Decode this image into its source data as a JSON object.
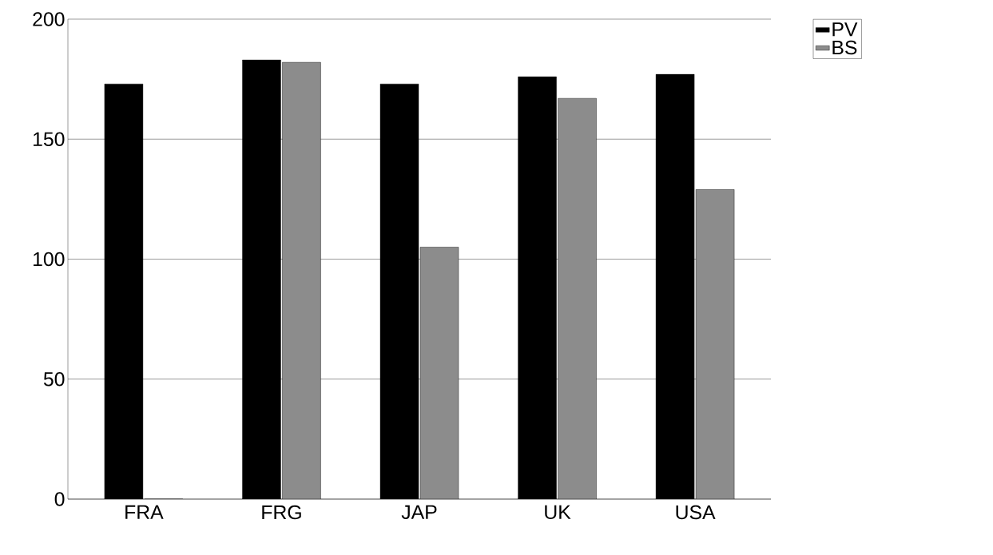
{
  "chart_data": {
    "type": "bar",
    "categories": [
      "FRA",
      "FRG",
      "JAP",
      "UK",
      "USA"
    ],
    "series": [
      {
        "name": "PV",
        "color": "#000000",
        "values": [
          173,
          183,
          173,
          176,
          177
        ]
      },
      {
        "name": "BS",
        "color": "#8c8c8c",
        "values": [
          0,
          182,
          105,
          167,
          129
        ]
      }
    ],
    "ylim": [
      0,
      200
    ],
    "yticks": [
      0,
      50,
      100,
      150,
      200
    ],
    "grid": "y",
    "legend": "top right"
  }
}
